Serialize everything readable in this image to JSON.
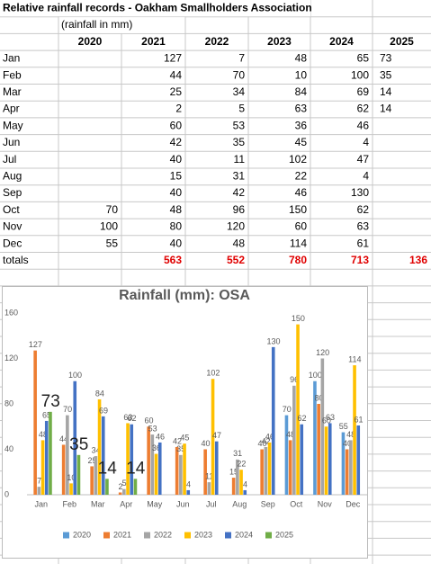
{
  "table": {
    "title": "Relative rainfall records - Oakham Smallholders Association",
    "subtitle": "(rainfall in mm)",
    "columns": [
      "2020",
      "2021",
      "2022",
      "2023",
      "2024",
      "2025"
    ],
    "rows": [
      {
        "label": "Jan",
        "cells": [
          null,
          127,
          7,
          48,
          65,
          73
        ]
      },
      {
        "label": "Feb",
        "cells": [
          null,
          44,
          70,
          10,
          100,
          35
        ]
      },
      {
        "label": "Mar",
        "cells": [
          null,
          25,
          34,
          84,
          69,
          14
        ]
      },
      {
        "label": "Apr",
        "cells": [
          null,
          2,
          5,
          63,
          62,
          14
        ]
      },
      {
        "label": "May",
        "cells": [
          null,
          60,
          53,
          36,
          46,
          null
        ]
      },
      {
        "label": "Jun",
        "cells": [
          null,
          42,
          35,
          45,
          4,
          null
        ]
      },
      {
        "label": "Jul",
        "cells": [
          null,
          40,
          11,
          102,
          47,
          null
        ]
      },
      {
        "label": "Aug",
        "cells": [
          null,
          15,
          31,
          22,
          4,
          null
        ]
      },
      {
        "label": "Sep",
        "cells": [
          null,
          40,
          42,
          46,
          130,
          null
        ]
      },
      {
        "label": "Oct",
        "cells": [
          70,
          48,
          96,
          150,
          62,
          null
        ]
      },
      {
        "label": "Nov",
        "cells": [
          100,
          80,
          120,
          60,
          63,
          null
        ]
      },
      {
        "label": "Dec",
        "cells": [
          55,
          40,
          48,
          114,
          61,
          null
        ]
      }
    ],
    "totals": {
      "label": "totals",
      "cells": [
        null,
        563,
        552,
        780,
        713,
        136
      ],
      "color": "#e00000"
    }
  },
  "chart_data": {
    "type": "bar",
    "title": "Rainfall (mm): OSA",
    "categories": [
      "Jan",
      "Feb",
      "Mar",
      "Apr",
      "May",
      "Jun",
      "Jul",
      "Aug",
      "Sep",
      "Oct",
      "Nov",
      "Dec"
    ],
    "series": [
      {
        "name": "2020",
        "color": "#5b9bd5",
        "values": [
          null,
          null,
          null,
          null,
          null,
          null,
          null,
          null,
          null,
          70,
          100,
          55
        ]
      },
      {
        "name": "2021",
        "color": "#ed7d31",
        "values": [
          127,
          44,
          25,
          2,
          60,
          42,
          40,
          15,
          40,
          48,
          80,
          40
        ]
      },
      {
        "name": "2022",
        "color": "#a5a5a5",
        "values": [
          7,
          70,
          34,
          5,
          53,
          35,
          11,
          31,
          42,
          96,
          120,
          48
        ]
      },
      {
        "name": "2023",
        "color": "#ffc000",
        "values": [
          48,
          10,
          84,
          63,
          36,
          45,
          102,
          22,
          46,
          150,
          60,
          114
        ]
      },
      {
        "name": "2024",
        "color": "#4472c4",
        "values": [
          65,
          100,
          69,
          62,
          46,
          4,
          47,
          4,
          130,
          62,
          63,
          61
        ]
      },
      {
        "name": "2025",
        "color": "#70ad47",
        "values": [
          73,
          35,
          14,
          14,
          null,
          null,
          null,
          null,
          null,
          null,
          null,
          null
        ]
      }
    ],
    "ylim": [
      0,
      160
    ],
    "yticks": [
      0,
      40,
      80,
      120,
      160
    ],
    "grid": false,
    "legend": "bottom"
  }
}
